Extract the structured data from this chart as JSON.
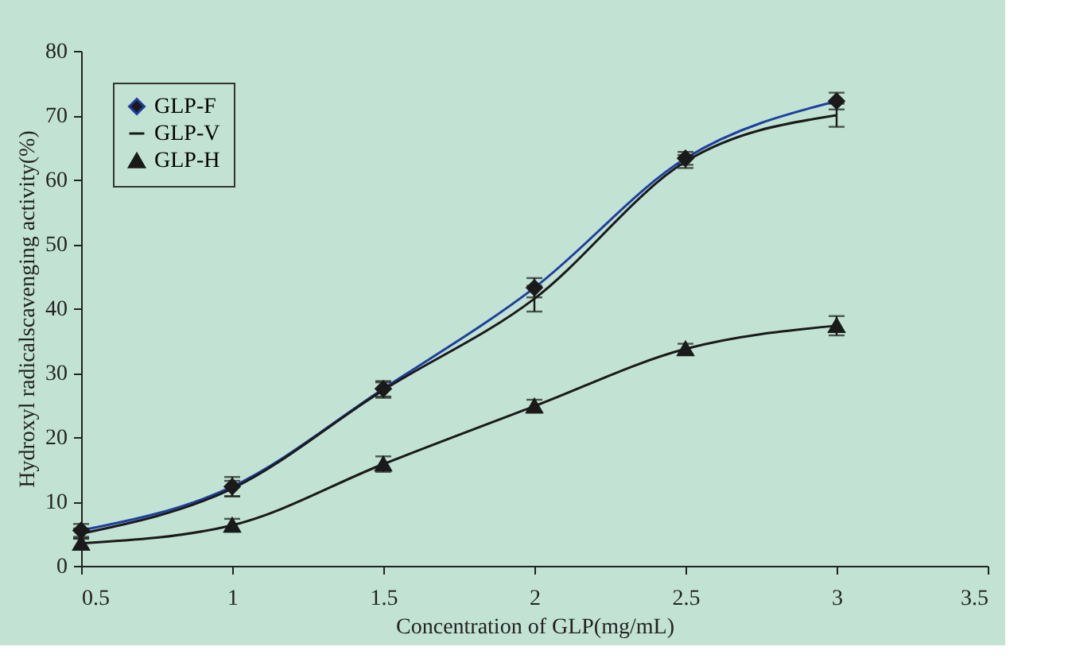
{
  "chart_data": {
    "type": "line",
    "xlabel": "Concentration of GLP(mg/mL)",
    "ylabel": "Hydroxyl radicalscavenging activity(%)",
    "x": [
      0.5,
      1,
      1.5,
      2,
      2.5,
      3
    ],
    "series": [
      {
        "name": "GLP-F",
        "color": "#1f3fa0",
        "marker": "diamond",
        "values": [
          5.5,
          12.3,
          27.5,
          43.2,
          63.3,
          72.2
        ],
        "errors": [
          1,
          1.5,
          1.2,
          1.5,
          1,
          1.3
        ]
      },
      {
        "name": "GLP-V",
        "color": "#1a1a1a",
        "marker": "none",
        "values": [
          5,
          12,
          27.3,
          41.5,
          62.8,
          70
        ],
        "errors": [
          0.8,
          1.2,
          1.2,
          2,
          1,
          1.8
        ]
      },
      {
        "name": "GLP-H",
        "color": "#1a1a1a",
        "marker": "triangle",
        "values": [
          3.5,
          6.3,
          15.8,
          24.8,
          33.7,
          37.3
        ],
        "errors": [
          0.8,
          1,
          1.2,
          1,
          0.8,
          1.5
        ]
      }
    ],
    "xlim": [
      0.5,
      3.5
    ],
    "xticks": [
      0.5,
      1,
      1.5,
      2,
      2.5,
      3,
      3.5
    ],
    "ylim": [
      0,
      80
    ],
    "yticks": [
      0,
      10,
      20,
      30,
      40,
      50,
      60,
      70,
      80
    ],
    "grid": false,
    "legend": "top left"
  }
}
